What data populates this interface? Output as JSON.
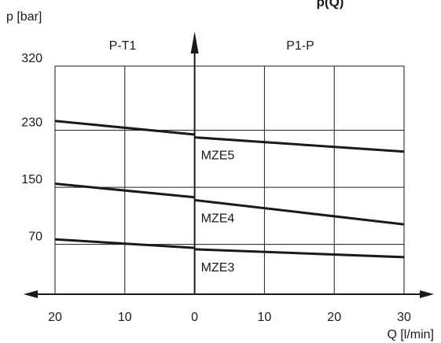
{
  "chart_data": {
    "type": "line",
    "title_fragment": "p(Q)",
    "ylabel": "p [bar]",
    "xlabel": "Q [l/min]",
    "regions": {
      "left": "P-T1",
      "right": "P1-P"
    },
    "x_ticks": [
      {
        "label": "20",
        "pos": -20
      },
      {
        "label": "10",
        "pos": -10
      },
      {
        "label": "0",
        "pos": 0
      },
      {
        "label": "10",
        "pos": 10
      },
      {
        "label": "20",
        "pos": 20
      },
      {
        "label": "30",
        "pos": 30
      }
    ],
    "y_ticks": [
      {
        "label": "320",
        "value": 320
      },
      {
        "label": "230",
        "value": 230
      },
      {
        "label": "150",
        "value": 150
      },
      {
        "label": "70",
        "value": 70
      }
    ],
    "xlim": [
      -20,
      30
    ],
    "ylim": [
      0,
      320
    ],
    "grid": true,
    "series": [
      {
        "name": "MZE5",
        "left": [
          [
            -20,
            243
          ],
          [
            0,
            224
          ]
        ],
        "right": [
          [
            0,
            220
          ],
          [
            30,
            200
          ]
        ]
      },
      {
        "name": "MZE4",
        "left": [
          [
            -20,
            155
          ],
          [
            0,
            136
          ]
        ],
        "right": [
          [
            0,
            132
          ],
          [
            30,
            98
          ]
        ]
      },
      {
        "name": "MZE3",
        "left": [
          [
            -20,
            77
          ],
          [
            0,
            65
          ]
        ],
        "right": [
          [
            0,
            63
          ],
          [
            30,
            52
          ]
        ]
      }
    ]
  }
}
